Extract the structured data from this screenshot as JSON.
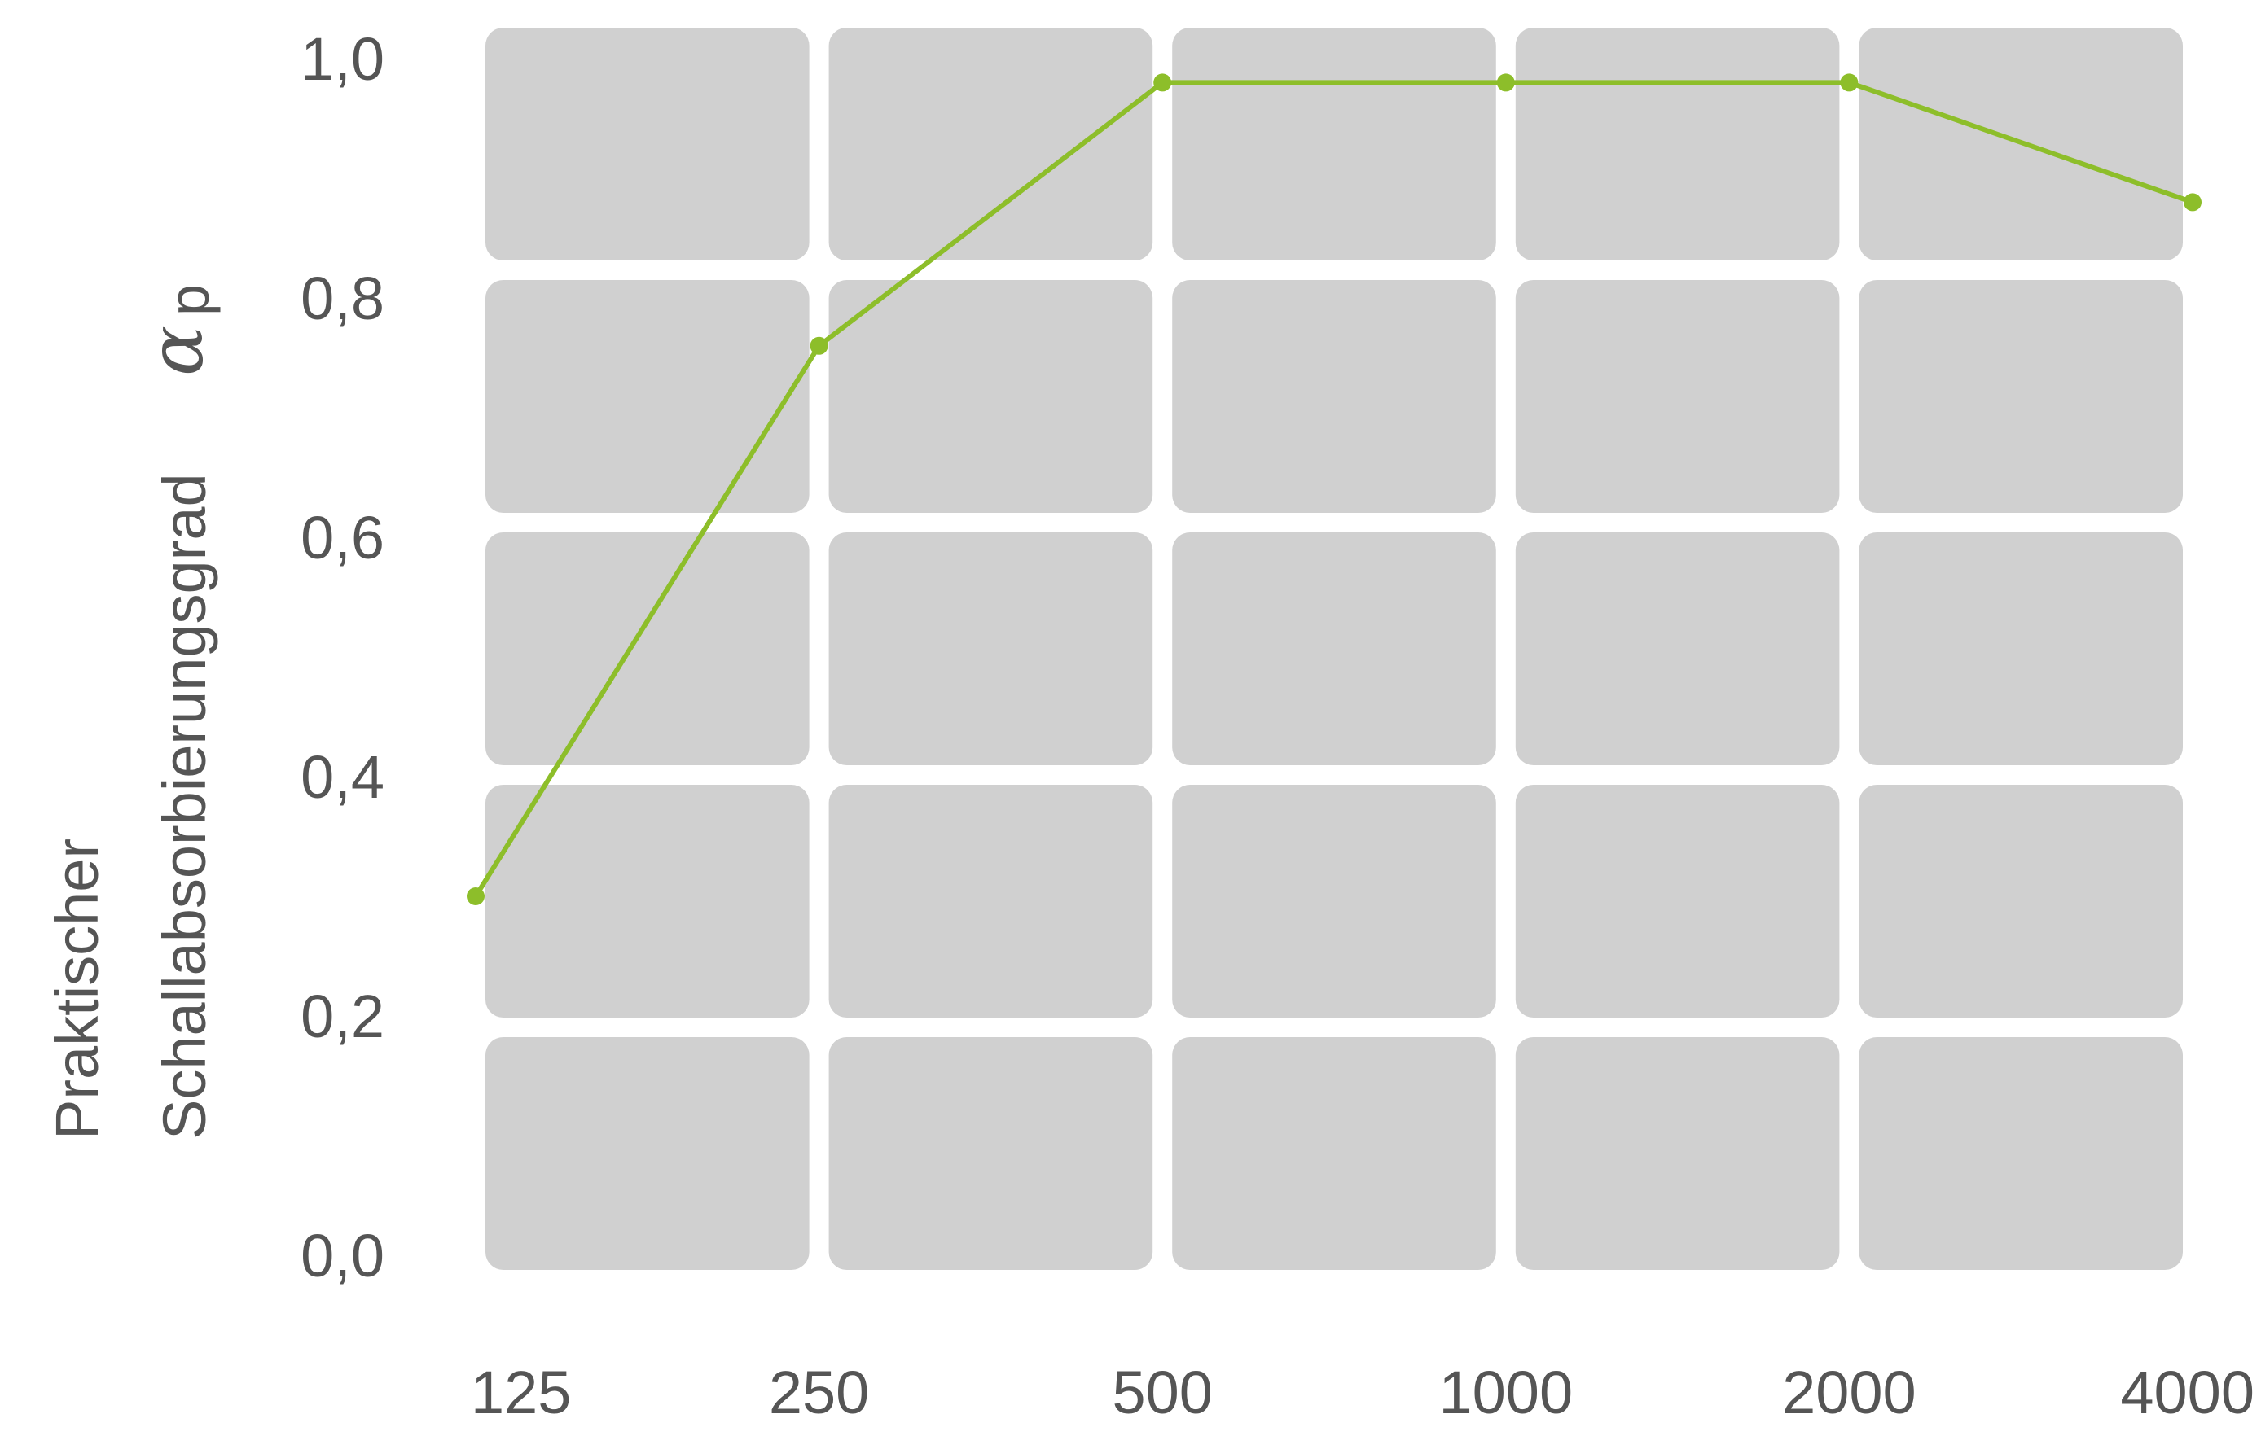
{
  "chart_data": {
    "type": "line",
    "x": [
      "125",
      "250",
      "500",
      "1000",
      "2000",
      "4000"
    ],
    "series": [
      {
        "values": [
          0.3,
          0.76,
          0.98,
          0.98,
          0.98,
          0.88
        ]
      }
    ],
    "ylabel_line1": "Praktischer",
    "ylabel_line2": "Schallabsorbierungsgrad",
    "ylabel_symbol": "α",
    "ylabel_subscript": "p",
    "yticks": [
      "0,0",
      "0,2",
      "0,4",
      "0,6",
      "0,8",
      "1,0"
    ],
    "ylim": [
      0,
      1.0
    ],
    "grid": true,
    "line_color": "#8dbe2a",
    "cell_color": "#d0d0d0"
  }
}
